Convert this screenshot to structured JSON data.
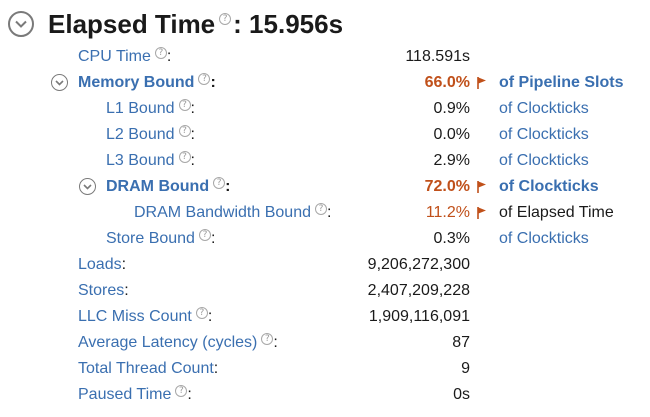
{
  "header": {
    "title": "Elapsed Time",
    "sep": ": ",
    "value": "15.956s"
  },
  "help_glyph": "?",
  "colors": {
    "link": "#3a6fb0",
    "warn": "#c0501a",
    "text": "#1a1a1a"
  },
  "rows": [
    {
      "label": "CPU Time",
      "colon": ":",
      "value": "118.591s",
      "unit": ""
    },
    {
      "label": "Memory Bound",
      "colon": ":",
      "value": "66.0%",
      "unit": "of Pipeline Slots"
    },
    {
      "label": "L1 Bound",
      "colon": ":",
      "value": "0.9%",
      "unit": "of Clockticks"
    },
    {
      "label": "L2 Bound",
      "colon": ":",
      "value": "0.0%",
      "unit": "of Clockticks"
    },
    {
      "label": "L3 Bound",
      "colon": ":",
      "value": "2.9%",
      "unit": "of Clockticks"
    },
    {
      "label": "DRAM Bound",
      "colon": ":",
      "value": "72.0%",
      "unit": "of Clockticks"
    },
    {
      "label": "DRAM Bandwidth Bound",
      "colon": ":",
      "value": "11.2%",
      "unit": "of Elapsed Time"
    },
    {
      "label": "Store Bound",
      "colon": ":",
      "value": "0.3%",
      "unit": "of Clockticks"
    },
    {
      "label": "Loads",
      "colon": ":",
      "value": "9,206,272,300",
      "unit": ""
    },
    {
      "label": "Stores",
      "colon": ":",
      "value": "2,407,209,228",
      "unit": ""
    },
    {
      "label": "LLC Miss Count",
      "colon": ":",
      "value": "1,909,116,091",
      "unit": ""
    },
    {
      "label": "Average Latency (cycles)",
      "colon": ":",
      "value": "87",
      "unit": ""
    },
    {
      "label": "Total Thread Count",
      "colon": ":",
      "value": "9",
      "unit": ""
    },
    {
      "label": "Paused Time",
      "colon": ":",
      "value": "0s",
      "unit": ""
    }
  ]
}
